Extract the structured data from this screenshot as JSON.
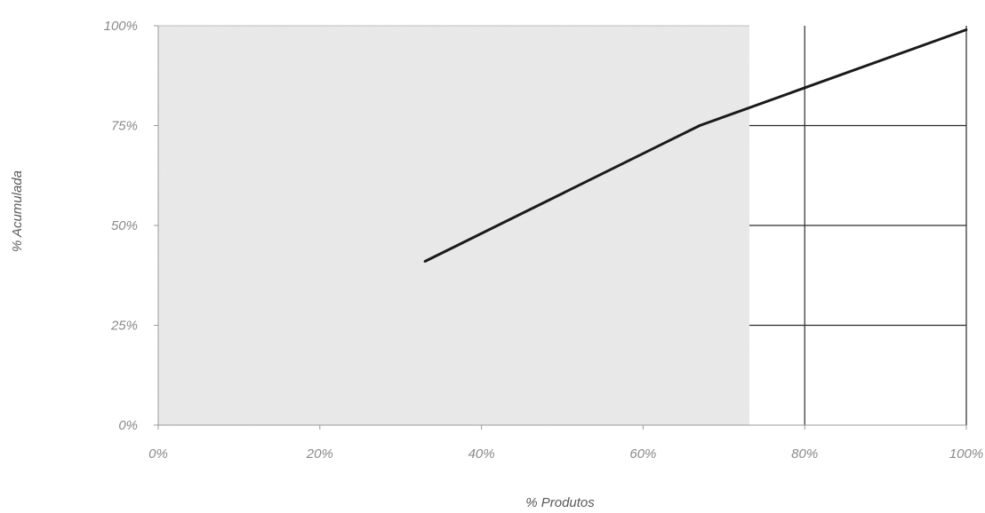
{
  "chart_data": {
    "type": "line",
    "title": "",
    "xlabel": "% Produtos",
    "ylabel": "% Acumulada",
    "x_ticks": [
      "0%",
      "20%",
      "40%",
      "60%",
      "80%",
      "100%"
    ],
    "y_ticks": [
      "0%",
      "25%",
      "50%",
      "75%",
      "100%"
    ],
    "xlim": [
      0,
      100
    ],
    "ylim": [
      0,
      100
    ],
    "series": [
      {
        "x": [
          33,
          67,
          100
        ],
        "y": [
          41,
          75,
          99
        ]
      }
    ],
    "colors": {
      "line": "#1a1a1a",
      "plot_background": "#ececec",
      "grid": "#2a2a2a",
      "axis": "#9a9a9a"
    }
  }
}
